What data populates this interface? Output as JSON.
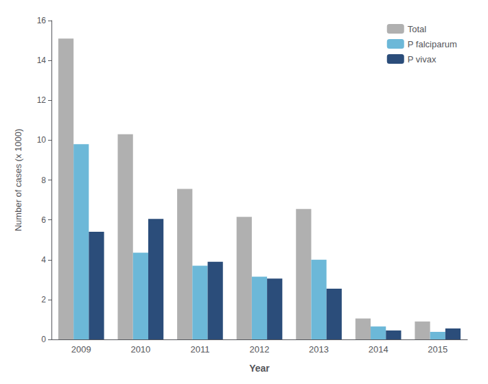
{
  "chart_data": {
    "type": "bar",
    "xlabel": "Year",
    "ylabel": "Number of cases (x 1000)",
    "categories": [
      "2009",
      "2010",
      "2011",
      "2012",
      "2013",
      "2014",
      "2015"
    ],
    "series": [
      {
        "name": "Total",
        "color": "#b0b0b0",
        "values": [
          15.1,
          10.3,
          7.55,
          6.15,
          6.55,
          1.05,
          0.9
        ]
      },
      {
        "name": "P falciparum",
        "color": "#6cb8d8",
        "values": [
          9.8,
          4.35,
          3.7,
          3.15,
          4.0,
          0.65,
          0.38
        ]
      },
      {
        "name": "P vivax",
        "color": "#2b4d7a",
        "values": [
          5.4,
          6.05,
          3.9,
          3.05,
          2.55,
          0.45,
          0.55
        ]
      }
    ],
    "ylim": [
      0,
      16
    ],
    "yticks": [
      0,
      2,
      4,
      6,
      8,
      10,
      12,
      14,
      16
    ],
    "legend": "upper right",
    "grid": false
  }
}
